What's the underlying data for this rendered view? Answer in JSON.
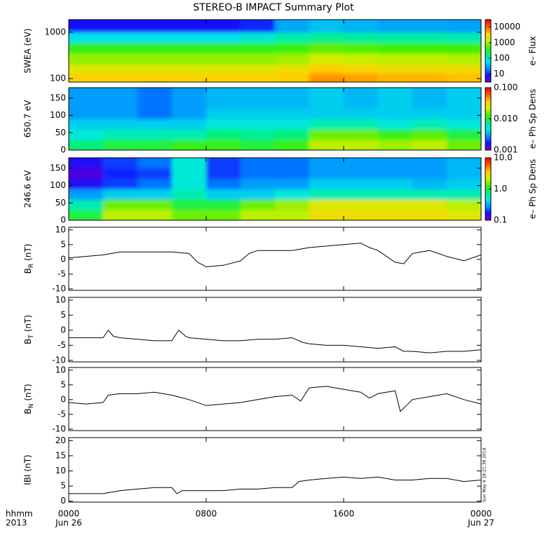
{
  "title": "STEREO-B IMPACT Summary Plot",
  "x_axis": {
    "xlim": [
      0,
      24
    ],
    "xticks": [
      {
        "value": 0,
        "label": "0000"
      },
      {
        "value": 8,
        "label": "0800"
      },
      {
        "value": 16,
        "label": "1600"
      },
      {
        "value": 24,
        "label": "0000"
      }
    ],
    "dates": [
      {
        "value": 0,
        "label": "Jun 26"
      },
      {
        "value": 24,
        "label": "Jun 27"
      }
    ],
    "format_label": "hhmm",
    "year_label": "2013"
  },
  "timestamp": "Sun May  4 18:21:38 2014",
  "colormap": [
    "#7000d0",
    "#1010ff",
    "#0090ff",
    "#00e8e8",
    "#00f080",
    "#40f000",
    "#d0f000",
    "#ffd000",
    "#ff6000",
    "#ff0000"
  ],
  "chart_data": [
    {
      "type": "heatmap",
      "ylabel": "SWEA (eV)",
      "log_y": true,
      "ylim": [
        84,
        1870
      ],
      "yticks": [
        100,
        1000
      ],
      "x_edges": [
        0,
        2,
        4,
        6,
        8,
        10,
        12,
        14,
        16,
        18,
        20,
        22,
        24
      ],
      "y_edges": [
        84,
        130,
        200,
        350,
        600,
        1000,
        1870
      ],
      "values": [
        [
          3500,
          3500,
          3500,
          3500,
          3500,
          3500,
          4000,
          7000,
          6000,
          5000,
          5000,
          4500
        ],
        [
          2000,
          2000,
          2000,
          2000,
          2000,
          2000,
          2500,
          4000,
          3500,
          3000,
          3000,
          2800
        ],
        [
          900,
          900,
          900,
          900,
          900,
          900,
          1000,
          1500,
          1300,
          1200,
          1200,
          1100
        ],
        [
          400,
          400,
          400,
          400,
          400,
          400,
          450,
          600,
          550,
          500,
          500,
          480
        ],
        [
          60,
          60,
          60,
          60,
          60,
          80,
          120,
          150,
          130,
          120,
          120,
          110
        ],
        [
          8,
          8,
          8,
          8,
          8,
          10,
          30,
          40,
          35,
          30,
          30,
          28
        ]
      ],
      "colorbar": {
        "label": "e– Flux",
        "clim": [
          3,
          30000
        ],
        "ticks": [
          10,
          100,
          1000,
          10000
        ]
      }
    },
    {
      "type": "heatmap",
      "ylabel": "650.7 eV",
      "log_y": false,
      "ylim": [
        0,
        180
      ],
      "yticks": [
        0,
        50,
        100,
        150
      ],
      "x_edges": [
        0,
        2,
        4,
        6,
        8,
        10,
        12,
        14,
        16,
        18,
        20,
        22,
        24
      ],
      "y_edges": [
        0,
        30,
        60,
        90,
        120,
        150,
        180
      ],
      "values": [
        [
          0.008,
          0.01,
          0.01,
          0.012,
          0.012,
          0.01,
          0.012,
          0.02,
          0.02,
          0.018,
          0.02,
          0.015
        ],
        [
          0.005,
          0.006,
          0.006,
          0.006,
          0.008,
          0.007,
          0.008,
          0.015,
          0.015,
          0.012,
          0.014,
          0.01
        ],
        [
          0.004,
          0.004,
          0.004,
          0.004,
          0.005,
          0.005,
          0.005,
          0.006,
          0.006,
          0.005,
          0.006,
          0.005
        ],
        [
          0.003,
          0.003,
          0.0025,
          0.003,
          0.004,
          0.004,
          0.004,
          0.004,
          0.004,
          0.004,
          0.004,
          0.004
        ],
        [
          0.003,
          0.003,
          0.0025,
          0.003,
          0.0035,
          0.0035,
          0.0035,
          0.004,
          0.0035,
          0.004,
          0.0035,
          0.004
        ],
        [
          0.003,
          0.003,
          0.0025,
          0.003,
          0.0035,
          0.0035,
          0.0035,
          0.004,
          0.0035,
          0.004,
          0.0035,
          0.004
        ]
      ],
      "colorbar": {
        "label": "e– Ph Sp Dens",
        "clim": [
          0.001,
          0.1
        ],
        "ticks": [
          0.001,
          {
            "value": 0.01,
            "label": "0.010"
          },
          {
            "value": 0.1,
            "label": "0.100"
          }
        ]
      }
    },
    {
      "type": "heatmap",
      "ylabel": "246.6 eV",
      "log_y": false,
      "ylim": [
        0,
        180
      ],
      "yticks": [
        0,
        50,
        100,
        150
      ],
      "x_edges": [
        0,
        2,
        4,
        6,
        8,
        10,
        12,
        14,
        16,
        18,
        20,
        22,
        24
      ],
      "y_edges": [
        0,
        30,
        60,
        90,
        120,
        150,
        180
      ],
      "values": [
        [
          1,
          2,
          2,
          1.5,
          1.5,
          2,
          2,
          3,
          3,
          3,
          3,
          2.5
        ],
        [
          0.6,
          1.5,
          1.5,
          1,
          1,
          1.5,
          1.8,
          2.5,
          2.5,
          2.5,
          2.5,
          2
        ],
        [
          0.3,
          0.4,
          0.4,
          0.6,
          0.4,
          0.4,
          0.5,
          0.6,
          0.6,
          0.6,
          0.6,
          0.6
        ],
        [
          0.15,
          0.2,
          0.25,
          0.5,
          0.25,
          0.3,
          0.3,
          0.4,
          0.4,
          0.4,
          0.35,
          0.4
        ],
        [
          0.12,
          0.18,
          0.2,
          0.5,
          0.2,
          0.25,
          0.25,
          0.3,
          0.3,
          0.3,
          0.3,
          0.35
        ],
        [
          0.15,
          0.2,
          0.25,
          0.5,
          0.2,
          0.25,
          0.25,
          0.3,
          0.3,
          0.3,
          0.3,
          0.35
        ]
      ],
      "colorbar": {
        "label": "e– Ph Sp Dens",
        "clim": [
          0.1,
          10
        ],
        "ticks": [
          0.1,
          {
            "value": 1,
            "label": "1.0"
          },
          {
            "value": 10,
            "label": "10.0"
          }
        ]
      }
    },
    {
      "type": "line",
      "ylabel": [
        "B",
        "R",
        "(nT)"
      ],
      "ylim": [
        -10.5,
        10.9
      ],
      "yticks": [
        -10,
        -5,
        0,
        5,
        10
      ],
      "color": "#000000",
      "x": [
        0,
        1,
        2,
        3,
        4,
        5,
        6,
        7,
        7.5,
        8,
        9,
        10,
        10.5,
        11,
        12,
        13,
        14,
        15,
        16,
        17,
        17.5,
        18,
        19,
        19.5,
        20,
        21,
        22,
        23,
        24
      ],
      "values": [
        0.5,
        1,
        1.5,
        2.5,
        2.5,
        2.5,
        2.5,
        2,
        -1,
        -2.5,
        -2,
        -0.5,
        2,
        3,
        3,
        3,
        4,
        4.5,
        5,
        5.5,
        4,
        3,
        -1,
        -1.5,
        2,
        3,
        1,
        -0.5,
        1.5
      ]
    },
    {
      "type": "line",
      "ylabel": [
        "B",
        "T",
        "(nT)"
      ],
      "ylim": [
        -10.5,
        10.9
      ],
      "yticks": [
        -10,
        -5,
        0,
        5,
        10
      ],
      "color": "#000000",
      "x": [
        0,
        1,
        2,
        2.3,
        2.6,
        3,
        4,
        5,
        6,
        6.4,
        6.8,
        7,
        8,
        9,
        10,
        11,
        12,
        13,
        13.6,
        14,
        15,
        16,
        17,
        18,
        19,
        19.5,
        20,
        21,
        22,
        23,
        24
      ],
      "values": [
        -2.5,
        -2.5,
        -2.5,
        0,
        -2,
        -2.5,
        -3,
        -3.5,
        -3.5,
        0,
        -2,
        -2.5,
        -3,
        -3.5,
        -3.5,
        -3,
        -3,
        -2.5,
        -4,
        -4.5,
        -5,
        -5,
        -5.5,
        -6,
        -5.5,
        -7,
        -7,
        -7.5,
        -7,
        -7,
        -6.5
      ]
    },
    {
      "type": "line",
      "ylabel": [
        "B",
        "N",
        "(nT)"
      ],
      "ylim": [
        -10.5,
        10.9
      ],
      "yticks": [
        -10,
        -5,
        0,
        5,
        10
      ],
      "color": "#000000",
      "x": [
        0,
        1,
        2,
        2.3,
        3,
        4,
        5,
        6,
        7,
        8,
        9,
        10,
        11,
        12,
        13,
        13.5,
        14,
        15,
        16,
        17,
        17.5,
        18,
        19,
        19.3,
        20,
        21,
        22,
        23,
        24
      ],
      "values": [
        -1,
        -1.5,
        -1,
        1.5,
        2,
        2,
        2.5,
        1.5,
        0,
        -2,
        -1.5,
        -1,
        0,
        1,
        1.5,
        -0.5,
        4,
        4.5,
        3.5,
        2.5,
        0.5,
        2,
        3,
        -4,
        0,
        1,
        2,
        0,
        -1.5
      ]
    },
    {
      "type": "line",
      "ylabel": "IBI (nT)",
      "ylim": [
        -0.3,
        21
      ],
      "yticks": [
        0,
        5,
        10,
        15,
        20
      ],
      "color": "#000000",
      "x": [
        0,
        1,
        2,
        2.5,
        3,
        4,
        5,
        6,
        6.3,
        6.6,
        7,
        8,
        9,
        10,
        11,
        12,
        13,
        13.4,
        14,
        15,
        16,
        17,
        18,
        19,
        20,
        21,
        22,
        23,
        24
      ],
      "values": [
        2.5,
        2.5,
        2.5,
        3,
        3.5,
        4,
        4.5,
        4.5,
        2.5,
        3.5,
        3.5,
        3.5,
        3.5,
        4,
        4,
        4.5,
        4.5,
        6.5,
        7,
        7.5,
        8,
        7.5,
        8,
        7,
        7,
        7.5,
        7.5,
        6.5,
        7
      ]
    }
  ]
}
